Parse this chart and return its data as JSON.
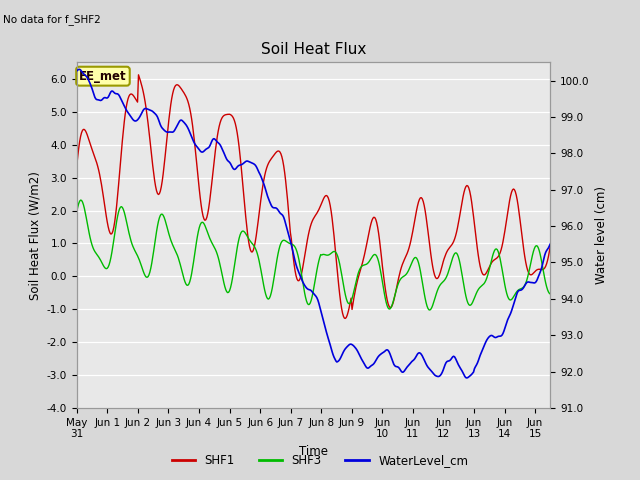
{
  "title": "Soil Heat Flux",
  "note": "No data for f_SHF2",
  "xlabel": "Time",
  "ylabel_left": "Soil Heat Flux (W/m2)",
  "ylabel_right": "Water level (cm)",
  "ylim_left": [
    -4.0,
    6.5
  ],
  "ylim_right": [
    91.0,
    100.5
  ],
  "yticks_left": [
    -4.0,
    -3.0,
    -2.0,
    -1.0,
    0.0,
    1.0,
    2.0,
    3.0,
    4.0,
    5.0,
    6.0
  ],
  "yticks_right": [
    91.0,
    92.0,
    93.0,
    94.0,
    95.0,
    96.0,
    97.0,
    98.0,
    99.0,
    100.0
  ],
  "bg_color": "#d8d8d8",
  "plot_bg_color": "#e8e8e8",
  "grid_color": "#ffffff",
  "color_SHF1": "#cc0000",
  "color_SHF3": "#00bb00",
  "color_water": "#0000dd",
  "annotation_text": "EE_met",
  "annotation_bg": "#ffffaa",
  "annotation_border": "#999900",
  "x_start": 0.0,
  "x_end": 15.5,
  "xlim": [
    0.0,
    15.5
  ]
}
